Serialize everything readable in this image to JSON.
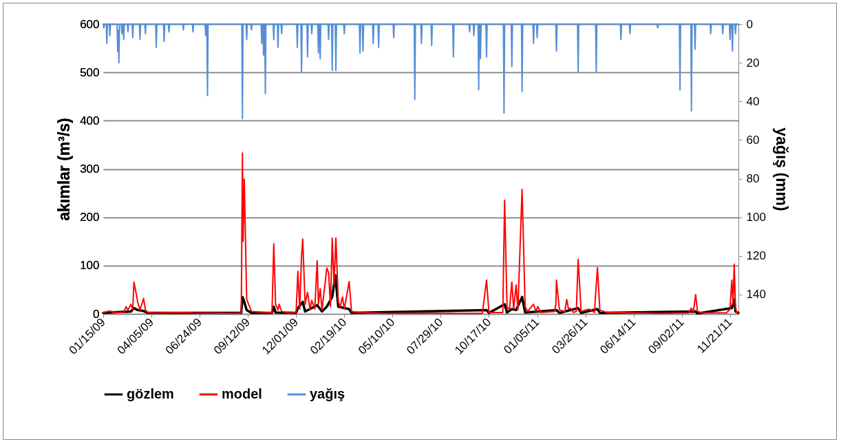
{
  "chart_data": {
    "type": "line",
    "ylabel": "akımlar (m³/s)",
    "y2label": "yağış (mm)",
    "xlim": [
      "2009-01-15",
      "2011-12-05"
    ],
    "xticks": [
      {
        "value": "2009-01-15",
        "label": "01/15/09"
      },
      {
        "value": "2009-04-05",
        "label": "04/05/09"
      },
      {
        "value": "2009-06-24",
        "label": "06/24/09"
      },
      {
        "value": "2009-09-12",
        "label": "09/12/09"
      },
      {
        "value": "2009-12-01",
        "label": "12/01/09"
      },
      {
        "value": "2010-02-19",
        "label": "02/19/10"
      },
      {
        "value": "2010-05-10",
        "label": "05/10/10"
      },
      {
        "value": "2010-07-29",
        "label": "07/29/10"
      },
      {
        "value": "2010-10-17",
        "label": "10/17/10"
      },
      {
        "value": "2011-01-05",
        "label": "01/05/11"
      },
      {
        "value": "2011-03-26",
        "label": "03/26/11"
      },
      {
        "value": "2011-06-14",
        "label": "06/14/11"
      },
      {
        "value": "2011-09-02",
        "label": "09/02/11"
      },
      {
        "value": "2011-11-21",
        "label": "11/21/11"
      }
    ],
    "ylim": [
      0,
      600
    ],
    "yticks": [
      0,
      100,
      200,
      300,
      400,
      500,
      600
    ],
    "y2lim": [
      150,
      0
    ],
    "y2ticks": [
      0,
      20,
      40,
      60,
      80,
      100,
      120,
      140
    ],
    "grid": "y",
    "legend": "bottom",
    "line_style": "solid",
    "marker": "none",
    "series": [
      {
        "name": "gözlem",
        "color": "#000000",
        "x": [
          "2009-01-15",
          "2009-03-02",
          "2009-03-07",
          "2009-03-13",
          "2009-03-23",
          "2009-03-30",
          "2009-09-01",
          "2009-09-03",
          "2009-09-06",
          "2009-09-10",
          "2009-09-18",
          "2009-10-22",
          "2009-10-25",
          "2009-10-28",
          "2009-12-01",
          "2009-12-04",
          "2009-12-12",
          "2009-12-16",
          "2010-01-05",
          "2010-01-13",
          "2010-01-21",
          "2010-01-30",
          "2010-02-04",
          "2010-02-09",
          "2010-02-27",
          "2010-03-03",
          "2010-10-13",
          "2010-10-17",
          "2010-11-12",
          "2010-11-16",
          "2010-11-24",
          "2010-12-01",
          "2010-12-11",
          "2010-12-16",
          "2011-02-06",
          "2011-02-11",
          "2011-03-14",
          "2011-03-19",
          "2011-04-15",
          "2011-04-19",
          "2011-09-25",
          "2011-09-28",
          "2011-11-24",
          "2011-11-28",
          "2011-11-30",
          "2011-12-05"
        ],
        "values": [
          2,
          5,
          12,
          8,
          6,
          2,
          2,
          35,
          25,
          8,
          2,
          2,
          15,
          3,
          2,
          12,
          25,
          5,
          18,
          5,
          15,
          35,
          80,
          15,
          10,
          2,
          8,
          2,
          20,
          3,
          10,
          8,
          35,
          3,
          8,
          2,
          12,
          2,
          10,
          2,
          5,
          1,
          12,
          30,
          5,
          2
        ]
      },
      {
        "name": "model",
        "color": "#ff0000",
        "x": [
          "2009-01-15",
          "2009-01-26",
          "2009-02-01",
          "2009-02-18",
          "2009-02-22",
          "2009-02-25",
          "2009-03-02",
          "2009-03-05",
          "2009-03-07",
          "2009-03-11",
          "2009-03-13",
          "2009-03-17",
          "2009-03-20",
          "2009-03-23",
          "2009-03-26",
          "2009-03-30",
          "2009-04-13",
          "2009-05-28",
          "2009-06-13",
          "2009-08-20",
          "2009-09-01",
          "2009-09-03",
          "2009-09-04",
          "2009-09-06",
          "2009-09-10",
          "2009-09-18",
          "2009-10-22",
          "2009-10-25",
          "2009-10-28",
          "2009-11-01",
          "2009-11-03",
          "2009-11-07",
          "2009-11-18",
          "2009-12-01",
          "2009-12-04",
          "2009-12-07",
          "2009-12-10",
          "2009-12-12",
          "2009-12-16",
          "2009-12-20",
          "2009-12-24",
          "2009-12-27",
          "2010-01-01",
          "2010-01-05",
          "2010-01-07",
          "2010-01-10",
          "2010-01-13",
          "2010-01-21",
          "2010-01-24",
          "2010-01-27",
          "2010-01-30",
          "2010-02-02",
          "2010-02-05",
          "2010-02-09",
          "2010-02-12",
          "2010-02-16",
          "2010-02-19",
          "2010-02-27",
          "2010-03-03",
          "2010-03-17",
          "2010-04-29",
          "2010-10-06",
          "2010-10-13",
          "2010-10-17",
          "2010-11-09",
          "2010-11-12",
          "2010-11-16",
          "2010-11-20",
          "2010-11-24",
          "2010-11-27",
          "2010-12-01",
          "2010-12-04",
          "2010-12-11",
          "2010-12-16",
          "2010-12-20",
          "2010-12-30",
          "2011-01-03",
          "2011-01-06",
          "2011-01-11",
          "2011-02-03",
          "2011-02-05",
          "2011-02-06",
          "2011-02-11",
          "2011-02-20",
          "2011-02-23",
          "2011-02-26",
          "2011-03-01",
          "2011-03-06",
          "2011-03-11",
          "2011-03-14",
          "2011-03-19",
          "2011-04-01",
          "2011-04-10",
          "2011-04-15",
          "2011-04-19",
          "2011-04-30",
          "2011-05-25",
          "2011-07-24",
          "2011-09-13",
          "2011-09-18",
          "2011-09-21",
          "2011-09-25",
          "2011-09-28",
          "2011-10-06",
          "2011-11-15",
          "2011-11-21",
          "2011-11-24",
          "2011-11-26",
          "2011-11-28",
          "2011-11-30",
          "2011-12-02",
          "2011-12-05"
        ],
        "values": [
          3,
          6,
          3,
          3,
          15,
          8,
          20,
          8,
          66,
          40,
          25,
          8,
          20,
          32,
          8,
          3,
          2,
          3,
          2,
          1,
          2,
          333,
          150,
          279,
          30,
          5,
          2,
          145,
          20,
          8,
          20,
          5,
          2,
          3,
          88,
          10,
          118,
          155,
          20,
          45,
          10,
          28,
          10,
          110,
          20,
          52,
          8,
          95,
          85,
          15,
          157,
          60,
          157,
          25,
          15,
          35,
          10,
          67,
          5,
          3,
          1,
          1,
          70,
          3,
          3,
          235,
          15,
          8,
          66,
          10,
          60,
          8,
          258,
          15,
          5,
          20,
          5,
          15,
          3,
          5,
          20,
          70,
          8,
          5,
          30,
          10,
          12,
          3,
          5,
          113,
          5,
          10,
          3,
          96,
          8,
          3,
          3,
          1,
          2,
          12,
          3,
          40,
          5,
          2,
          2,
          10,
          70,
          20,
          103,
          15,
          3,
          2
        ]
      },
      {
        "name": "yağış",
        "color": "#558ed5",
        "axis": "y2",
        "x": [
          "2009-01-15",
          "2009-01-16",
          "2009-01-17",
          "2009-01-20",
          "2009-01-21",
          "2009-01-22",
          "2009-01-25",
          "2009-01-26",
          "2009-01-27",
          "2009-02-07",
          "2009-02-08",
          "2009-02-09",
          "2009-02-10",
          "2009-02-11",
          "2009-02-14",
          "2009-02-15",
          "2009-02-16",
          "2009-02-17",
          "2009-02-18",
          "2009-02-19",
          "2009-02-24",
          "2009-02-25",
          "2009-02-26",
          "2009-03-04",
          "2009-03-05",
          "2009-03-06",
          "2009-03-16",
          "2009-03-17",
          "2009-03-18",
          "2009-03-25",
          "2009-03-26",
          "2009-03-27",
          "2009-04-12",
          "2009-04-13",
          "2009-04-14",
          "2009-04-25",
          "2009-04-26",
          "2009-04-27",
          "2009-05-03",
          "2009-05-04",
          "2009-05-05",
          "2009-05-27",
          "2009-05-28",
          "2009-05-29",
          "2009-06-12",
          "2009-06-13",
          "2009-06-14",
          "2009-07-03",
          "2009-07-04",
          "2009-07-05",
          "2009-07-06",
          "2009-07-07",
          "2009-07-08",
          "2009-09-02",
          "2009-09-03",
          "2009-09-04",
          "2009-09-09",
          "2009-09-10",
          "2009-09-11",
          "2009-09-17",
          "2009-09-18",
          "2009-09-19",
          "2009-10-04",
          "2009-10-05",
          "2009-10-06",
          "2009-10-07",
          "2009-10-08",
          "2009-10-09",
          "2009-10-10",
          "2009-10-11",
          "2009-10-12",
          "2009-10-24",
          "2009-10-25",
          "2009-10-26",
          "2009-10-31",
          "2009-11-01",
          "2009-11-02",
          "2009-11-06",
          "2009-11-07",
          "2009-11-08",
          "2009-12-02",
          "2009-12-03",
          "2009-12-04",
          "2009-12-09",
          "2009-12-10",
          "2009-12-11",
          "2009-12-19",
          "2009-12-20",
          "2009-12-21",
          "2009-12-26",
          "2009-12-27",
          "2009-12-28",
          "2010-01-06",
          "2010-01-07",
          "2010-01-08",
          "2010-01-09",
          "2010-01-10",
          "2010-01-11",
          "2010-01-23",
          "2010-01-24",
          "2010-01-25",
          "2010-01-29",
          "2010-01-30",
          "2010-01-31",
          "2010-02-04",
          "2010-02-05",
          "2010-02-06",
          "2010-02-18",
          "2010-02-19",
          "2010-02-20",
          "2010-03-16",
          "2010-03-17",
          "2010-03-18",
          "2010-03-21",
          "2010-03-22",
          "2010-03-23",
          "2010-04-07",
          "2010-04-08",
          "2010-04-09",
          "2010-04-16",
          "2010-04-17",
          "2010-04-18",
          "2010-05-11",
          "2010-05-12",
          "2010-05-13",
          "2010-06-15",
          "2010-06-16",
          "2010-06-17",
          "2010-06-26",
          "2010-06-27",
          "2010-06-28",
          "2010-07-13",
          "2010-07-14",
          "2010-07-15",
          "2010-08-18",
          "2010-08-19",
          "2010-08-20",
          "2010-09-14",
          "2010-09-15",
          "2010-09-16",
          "2010-09-21",
          "2010-09-22",
          "2010-09-23",
          "2010-09-29",
          "2010-09-30",
          "2010-10-01",
          "2010-10-02",
          "2010-10-03",
          "2010-10-04",
          "2010-10-12",
          "2010-10-13",
          "2010-10-14",
          "2010-11-10",
          "2010-11-11",
          "2010-11-12",
          "2010-11-23",
          "2010-11-24",
          "2010-11-25",
          "2010-12-10",
          "2010-12-11",
          "2010-12-12",
          "2010-12-29",
          "2010-12-30",
          "2010-12-31",
          "2011-01-04",
          "2011-01-05",
          "2011-01-06",
          "2011-02-05",
          "2011-02-06",
          "2011-02-07",
          "2011-03-13",
          "2011-03-14",
          "2011-03-15",
          "2011-04-12",
          "2011-04-13",
          "2011-04-14",
          "2011-05-23",
          "2011-05-24",
          "2011-05-25",
          "2011-06-07",
          "2011-06-08",
          "2011-06-09",
          "2011-07-23",
          "2011-07-24",
          "2011-07-25",
          "2011-08-29",
          "2011-08-30",
          "2011-08-31",
          "2011-09-17",
          "2011-09-18",
          "2011-09-19",
          "2011-09-23",
          "2011-09-24",
          "2011-09-25",
          "2011-10-19",
          "2011-10-20",
          "2011-10-21",
          "2011-11-08",
          "2011-11-09",
          "2011-11-10",
          "2011-11-20",
          "2011-11-21",
          "2011-11-22",
          "2011-11-24",
          "2011-11-25",
          "2011-11-26",
          "2011-11-29",
          "2011-11-30",
          "2011-12-01",
          "2011-12-05"
        ],
        "values": [
          0,
          2,
          0,
          0,
          10,
          0,
          0,
          6,
          0,
          0,
          14,
          3,
          20,
          0,
          0,
          5,
          0,
          0,
          8,
          0,
          0,
          4,
          0,
          0,
          7,
          0,
          0,
          8,
          0,
          0,
          5,
          0,
          0,
          12,
          0,
          0,
          9,
          0,
          0,
          4,
          0,
          0,
          3,
          0,
          0,
          4,
          0,
          0,
          6,
          0,
          0,
          37,
          0,
          0,
          49,
          0,
          0,
          8,
          0,
          0,
          3,
          0,
          0,
          10,
          0,
          0,
          16,
          0,
          0,
          36,
          0,
          0,
          8,
          0,
          0,
          12,
          0,
          0,
          5,
          0,
          0,
          12,
          0,
          0,
          25,
          0,
          0,
          17,
          0,
          0,
          5,
          0,
          0,
          15,
          0,
          0,
          18,
          0,
          0,
          8,
          0,
          0,
          24,
          0,
          0,
          24,
          0,
          0,
          5,
          0,
          0,
          15,
          0,
          0,
          14,
          0,
          0,
          10,
          0,
          0,
          12,
          0,
          0,
          7,
          0,
          0,
          39,
          0,
          0,
          10,
          0,
          0,
          11,
          0,
          0,
          17,
          0,
          0,
          4,
          0,
          0,
          6,
          0,
          0,
          34,
          0,
          0,
          18,
          0,
          0,
          17,
          0,
          0,
          46,
          0,
          0,
          22,
          0,
          0,
          35,
          0,
          0,
          10,
          0,
          0,
          7,
          0,
          0,
          14,
          0,
          0,
          25,
          0,
          0,
          25,
          0,
          0,
          8,
          0,
          0,
          5,
          0,
          0,
          2,
          0,
          0,
          34,
          0,
          0,
          45,
          0,
          0,
          13,
          0,
          0,
          5,
          0,
          0,
          5,
          0,
          0,
          8,
          0,
          0,
          14,
          0,
          0,
          5,
          0,
          0
        ]
      }
    ]
  }
}
